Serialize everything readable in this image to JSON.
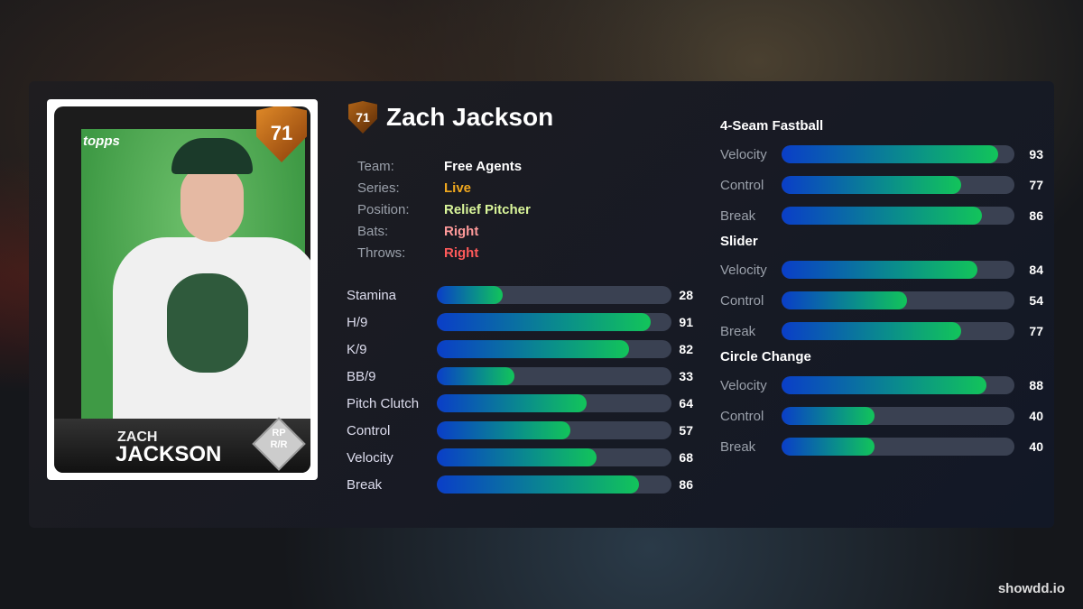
{
  "player": {
    "name": "Zach Jackson",
    "overall": "71",
    "card_first": "ZACH",
    "card_last": "JACKSON",
    "card_position": "RP",
    "card_handedness": "R/R",
    "card_brand": "topps"
  },
  "info": [
    {
      "label": "Team:",
      "value": "Free Agents",
      "color": "#ffffff"
    },
    {
      "label": "Series:",
      "value": "Live",
      "color": "#f0a81e"
    },
    {
      "label": "Position:",
      "value": "Relief Pitcher",
      "color": "#d9f59a"
    },
    {
      "label": "Bats:",
      "value": "Right",
      "color": "#ff9a9a"
    },
    {
      "label": "Throws:",
      "value": "Right",
      "color": "#ff5a5a"
    }
  ],
  "stats": [
    {
      "label": "Stamina",
      "value": 28
    },
    {
      "label": "H/9",
      "value": 91
    },
    {
      "label": "K/9",
      "value": 82
    },
    {
      "label": "BB/9",
      "value": 33
    },
    {
      "label": "Pitch Clutch",
      "value": 64
    },
    {
      "label": "Control",
      "value": 57
    },
    {
      "label": "Velocity",
      "value": 68
    },
    {
      "label": "Break",
      "value": 86
    }
  ],
  "pitches": [
    {
      "name": "4-Seam Fastball",
      "attrs": [
        {
          "label": "Velocity",
          "value": 93
        },
        {
          "label": "Control",
          "value": 77
        },
        {
          "label": "Break",
          "value": 86
        }
      ]
    },
    {
      "name": "Slider",
      "attrs": [
        {
          "label": "Velocity",
          "value": 84
        },
        {
          "label": "Control",
          "value": 54
        },
        {
          "label": "Break",
          "value": 77
        }
      ]
    },
    {
      "name": "Circle Change",
      "attrs": [
        {
          "label": "Velocity",
          "value": 88
        },
        {
          "label": "Control",
          "value": 40
        },
        {
          "label": "Break",
          "value": 40
        }
      ]
    }
  ],
  "watermark": "showdd.io"
}
